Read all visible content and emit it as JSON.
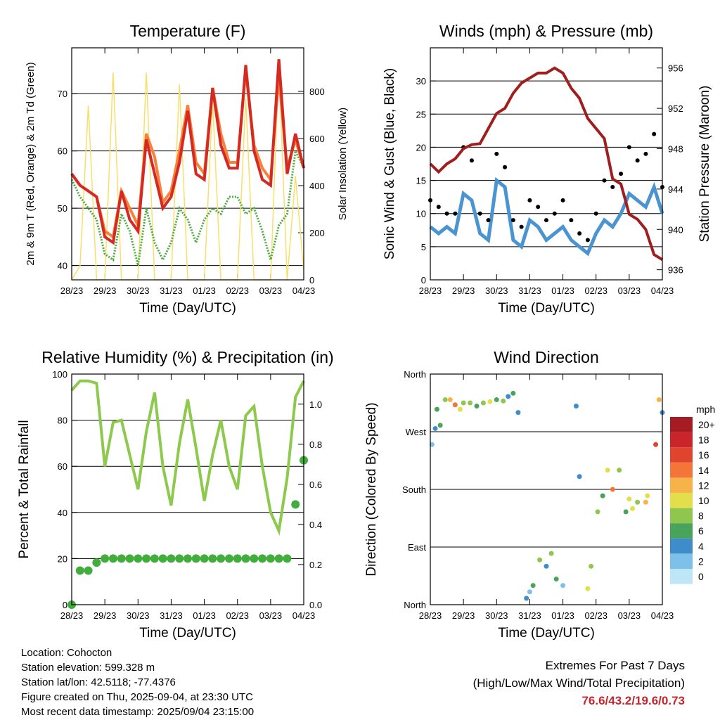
{
  "colors": {
    "temp2m": "#d42a22",
    "temp9m": "#f7823c",
    "dewpoint": "#4cad3c",
    "solar": "#f7df6a",
    "wind": "#4a94d2",
    "gust": "#000000",
    "pressure": "#a01e1e",
    "rh": "#8cc94c",
    "precip": "#42ad3c"
  },
  "chart_data": [
    {
      "type": "line",
      "title": "Temperature (F)",
      "xlabel": "Time (Day/UTC)",
      "ylabel": "2m & 9m T (Red, Orange) & 2m Td (Green)",
      "ylabel_right": "Solar Insolation (Yellow)",
      "x_ticks": [
        "28/23",
        "29/23",
        "30/23",
        "31/23",
        "01/23",
        "02/23",
        "03/23",
        "04/23"
      ],
      "ylim": [
        37.5,
        78
      ],
      "y_ticks": [
        40,
        50,
        60,
        70
      ],
      "ylim_right": [
        0,
        985
      ],
      "y_ticks_right": [
        0,
        200,
        400,
        600,
        800
      ],
      "x": [
        0,
        0.25,
        0.5,
        0.75,
        1,
        1.25,
        1.5,
        1.75,
        2,
        2.25,
        2.5,
        2.75,
        3,
        3.25,
        3.5,
        3.75,
        4,
        4.25,
        4.5,
        4.75,
        5,
        5.25,
        5.5,
        5.75,
        6,
        6.25,
        6.5,
        6.75,
        7
      ],
      "series": [
        {
          "name": "2m T",
          "values": [
            56,
            54,
            53,
            52,
            45,
            44,
            53,
            48,
            46,
            62,
            56,
            50,
            52,
            58,
            67,
            56,
            55,
            71,
            61,
            57,
            57,
            75,
            60,
            55,
            54,
            76,
            56,
            63,
            57
          ]
        },
        {
          "name": "9m T",
          "values": [
            56,
            54,
            53,
            52,
            46,
            45,
            53,
            50,
            47,
            63,
            59,
            51,
            53,
            60,
            68,
            58,
            56,
            71,
            63,
            58,
            58,
            74,
            61,
            57,
            55,
            73,
            57,
            62,
            57
          ]
        },
        {
          "name": "2m Td",
          "values": [
            55,
            52,
            50,
            48,
            42,
            41,
            49,
            46,
            40,
            50,
            44,
            41,
            44,
            50,
            48,
            44,
            48,
            50,
            49,
            52,
            52,
            49,
            50,
            46,
            41,
            47,
            49,
            60,
            57
          ]
        },
        {
          "name": "Solar",
          "values": [
            0,
            60,
            740,
            0,
            0,
            880,
            0,
            0,
            0,
            880,
            0,
            0,
            0,
            830,
            0,
            0,
            0,
            760,
            0,
            0,
            0,
            770,
            0,
            0,
            0,
            920,
            0,
            440,
            40
          ]
        }
      ]
    },
    {
      "type": "line",
      "title": "Winds (mph) & Pressure (mb)",
      "xlabel": "Time (Day/UTC)",
      "ylabel": "Sonic Wind & Gust (Blue, Black)",
      "ylabel_right": "Station Pressure (Maroon)",
      "x_ticks": [
        "28/23",
        "29/23",
        "30/23",
        "31/23",
        "01/23",
        "02/23",
        "03/23",
        "04/23"
      ],
      "ylim": [
        0,
        35
      ],
      "y_ticks": [
        0,
        5,
        10,
        15,
        20,
        25,
        30
      ],
      "ylim_right": [
        935,
        958
      ],
      "y_ticks_right": [
        936,
        940,
        944,
        948,
        952,
        956
      ],
      "x": [
        0,
        0.25,
        0.5,
        0.75,
        1,
        1.25,
        1.5,
        1.75,
        2,
        2.25,
        2.5,
        2.75,
        3,
        3.25,
        3.5,
        3.75,
        4,
        4.25,
        4.5,
        4.75,
        5,
        5.25,
        5.5,
        5.75,
        6,
        6.25,
        6.5,
        6.75,
        7
      ],
      "series": [
        {
          "name": "Wind",
          "values": [
            8,
            7,
            8,
            7,
            13,
            12,
            7,
            6,
            15,
            14,
            6,
            5,
            9,
            8,
            6,
            7,
            8,
            6,
            5,
            4,
            7,
            9,
            8,
            10,
            13,
            12,
            11,
            14,
            10
          ]
        },
        {
          "name": "Gust",
          "values": [
            12,
            11,
            10,
            10,
            20,
            18,
            10,
            9,
            19,
            17,
            9,
            8,
            12,
            11,
            9,
            10,
            12,
            9,
            7,
            6,
            10,
            15,
            14,
            16,
            20,
            18,
            19,
            22,
            14
          ]
        },
        {
          "name": "Pressure",
          "values": [
            946.5,
            945.7,
            946.5,
            947,
            948,
            948.4,
            948.5,
            950,
            951.5,
            952,
            953.5,
            954.5,
            955,
            955.5,
            955.5,
            956,
            955.5,
            954,
            953,
            951,
            950,
            949,
            945,
            944.5,
            941.5,
            941,
            940,
            937.5,
            937
          ]
        }
      ]
    },
    {
      "type": "line",
      "title": "Relative Humidity (%) & Precipitation (in)",
      "xlabel": "Time (Day/UTC)",
      "ylabel": "Percent & Total Rainfall",
      "x_ticks": [
        "28/23",
        "29/23",
        "30/23",
        "31/23",
        "01/23",
        "02/23",
        "03/23",
        "04/23"
      ],
      "ylim": [
        0,
        100
      ],
      "y_ticks": [
        0,
        20,
        40,
        60,
        80,
        100
      ],
      "ylim_right": [
        0,
        1.15
      ],
      "y_ticks_right": [
        "0.0",
        "0.2",
        "0.4",
        "0.6",
        "0.8",
        "1.0"
      ],
      "x": [
        0,
        0.25,
        0.5,
        0.75,
        1,
        1.25,
        1.5,
        1.75,
        2,
        2.25,
        2.5,
        2.75,
        3,
        3.25,
        3.5,
        3.75,
        4,
        4.25,
        4.5,
        4.75,
        5,
        5.25,
        5.5,
        5.75,
        6,
        6.25,
        6.5,
        6.75,
        7
      ],
      "series": [
        {
          "name": "RH",
          "values": [
            93,
            97,
            97,
            96,
            60,
            79,
            80,
            65,
            50,
            75,
            92,
            60,
            43,
            70,
            89,
            68,
            45,
            65,
            80,
            60,
            50,
            82,
            86,
            60,
            40,
            32,
            55,
            90,
            97
          ]
        },
        {
          "name": "Precip",
          "values": [
            0,
            0.17,
            0.17,
            0.21,
            0.23,
            0.23,
            0.23,
            0.23,
            0.23,
            0.23,
            0.23,
            0.23,
            0.23,
            0.23,
            0.23,
            0.23,
            0.23,
            0.23,
            0.23,
            0.23,
            0.23,
            0.23,
            0.23,
            0.23,
            0.23,
            0.23,
            0.23,
            0.5,
            0.72
          ]
        }
      ]
    },
    {
      "type": "scatter",
      "title": "Wind Direction",
      "xlabel": "Time (Day/UTC)",
      "ylabel": "Direction (Colored By Speed)",
      "x_ticks": [
        "28/23",
        "29/23",
        "30/23",
        "31/23",
        "01/23",
        "02/23",
        "03/23",
        "04/23"
      ],
      "y_ticks": [
        "North",
        "East",
        "South",
        "West",
        "North"
      ],
      "ylim": [
        0,
        360
      ],
      "x": [
        0.05,
        0.15,
        0.2,
        0.3,
        0.45,
        0.6,
        0.75,
        0.9,
        1.0,
        1.2,
        1.4,
        1.6,
        1.8,
        2.0,
        2.2,
        2.35,
        2.5,
        2.65,
        2.9,
        3.0,
        3.1,
        3.3,
        3.5,
        3.65,
        3.8,
        4.0,
        4.4,
        4.5,
        4.75,
        4.85,
        5.05,
        5.2,
        5.35,
        5.5,
        5.7,
        5.9,
        6.0,
        6.1,
        6.25,
        6.5,
        6.55,
        6.8,
        6.9,
        7.0
      ],
      "values": [
        250,
        275,
        305,
        280,
        320,
        320,
        312,
        305,
        315,
        315,
        310,
        315,
        317,
        320,
        318,
        325,
        330,
        300,
        10,
        20,
        30,
        70,
        60,
        80,
        40,
        30,
        310,
        200,
        25,
        60,
        145,
        170,
        210,
        180,
        210,
        145,
        165,
        150,
        160,
        160,
        170,
        250,
        320,
        300
      ],
      "speed": [
        3,
        5,
        7,
        6,
        9,
        12,
        14,
        11,
        8,
        9,
        7,
        8,
        10,
        6,
        9,
        4,
        6,
        5,
        4,
        3,
        6,
        8,
        5,
        9,
        6,
        3,
        4,
        5,
        11,
        9,
        8,
        6,
        10,
        14,
        9,
        6,
        11,
        10,
        8,
        12,
        10,
        17,
        13,
        4
      ],
      "colorbar": {
        "title": "mph",
        "labels": [
          "20+",
          "18",
          "16",
          "14",
          "12",
          "10",
          "8",
          "6",
          "4",
          "2",
          "0"
        ]
      }
    }
  ],
  "info": {
    "location": "Location: Cohocton",
    "elevation": "Station elevation: 599.328 m",
    "latlon": "Station lat/lon: 42.5118; -77.4376",
    "created": "Figure created on Thu, 2025-09-04, at 23:30 UTC",
    "recent": "Most recent data timestamp: 2025/09/04 23:15:00",
    "extremes_label": "Extremes For Past 7 Days",
    "extremes_desc": "(High/Low/Max Wind/Total Precipitation)",
    "extremes_values": "76.6/43.2/19.6/0.73"
  }
}
